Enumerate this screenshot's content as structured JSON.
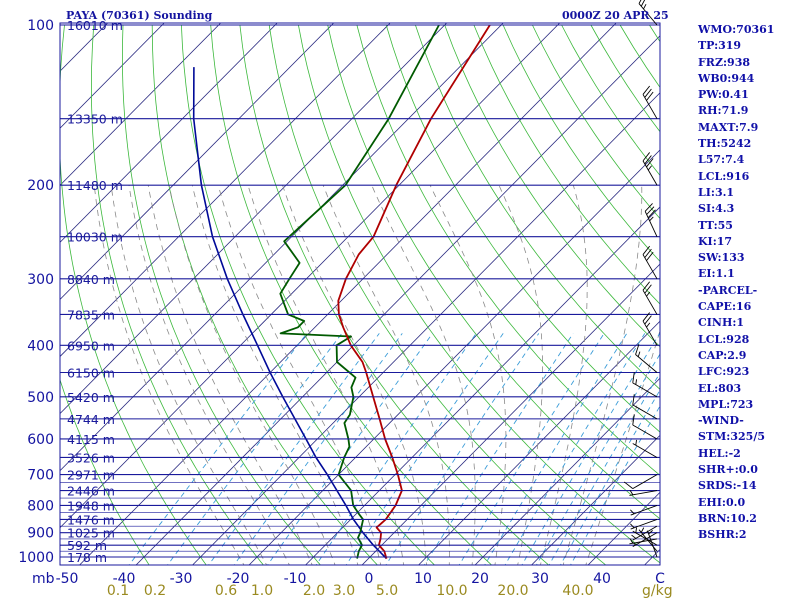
{
  "header": {
    "station": "PAYA (70361) Sounding",
    "valid_time": "0000Z 20 APR 25"
  },
  "indices": [
    "WMO:70361",
    "TP:319",
    "FRZ:938",
    "WB0:944",
    "PW:0.41",
    "RH:71.9",
    "MAXT:7.9",
    "TH:5242",
    "L57:7.4",
    "LCL:916",
    "LI:3.1",
    "SI:4.3",
    "TT:55",
    "KI:17",
    "SW:133",
    "EI:1.1",
    "-PARCEL-",
    "CAPE:16",
    "CINH:1",
    "LCL:928",
    "CAP:2.9",
    "LFC:923",
    "EL:803",
    "MPL:723",
    "-WIND-",
    "STM:325/5",
    "HEL:-2",
    "SHR+:0.0",
    "SRDS:-14",
    "EHI:0.0",
    "BRN:10.2",
    "BSHR:2"
  ],
  "chart_data": {
    "type": "line",
    "diagram": "skew-T log-P",
    "pressure_unit_label": "mb",
    "pressure_levels": [
      "100",
      "200",
      "300",
      "400",
      "500",
      "600",
      "700",
      "800",
      "900",
      "1000"
    ],
    "height_labels": [
      {
        "p": 100,
        "text": "16010 m"
      },
      {
        "p": 150,
        "text": "13350 m"
      },
      {
        "p": 200,
        "text": "11480 m"
      },
      {
        "p": 250,
        "text": "10030 m"
      },
      {
        "p": 300,
        "text": "8840 m"
      },
      {
        "p": 350,
        "text": "7835 m"
      },
      {
        "p": 400,
        "text": "6950 m"
      },
      {
        "p": 450,
        "text": "6150 m"
      },
      {
        "p": 500,
        "text": "5420 m"
      },
      {
        "p": 550,
        "text": "4744 m"
      },
      {
        "p": 600,
        "text": "4115 m"
      },
      {
        "p": 650,
        "text": "3526 m"
      },
      {
        "p": 700,
        "text": "2971 m"
      },
      {
        "p": 750,
        "text": "2446 m"
      },
      {
        "p": 800,
        "text": "1948 m"
      },
      {
        "p": 850,
        "text": "1476 m"
      },
      {
        "p": 900,
        "text": "1025 m"
      },
      {
        "p": 950,
        "text": "592 m"
      },
      {
        "p": 1000,
        "text": "178 m"
      }
    ],
    "temperature_ticks": [
      "-50",
      "-40",
      "-30",
      "-20",
      "-10",
      "0",
      "10",
      "20",
      "30",
      "40",
      "C"
    ],
    "mixing_ratio_ticks": [
      {
        "w": 0.1,
        "text": "0.1"
      },
      {
        "w": 0.2,
        "text": "0.2"
      },
      {
        "w": 0.6,
        "text": "0.6"
      },
      {
        "w": 1.0,
        "text": "1.0"
      },
      {
        "w": 2.0,
        "text": "2.0"
      },
      {
        "w": 3.0,
        "text": "3.0"
      },
      {
        "w": 5.0,
        "text": "5.0"
      },
      {
        "w": 10.0,
        "text": "10.0"
      },
      {
        "w": 20.0,
        "text": "20.0"
      },
      {
        "w": 40.0,
        "text": "40.0"
      }
    ],
    "mixing_ratio_unit": "g/kg",
    "temperature_c": [
      [
        1007,
        3.2
      ],
      [
        975,
        1.5
      ],
      [
        950,
        -0.5
      ],
      [
        925,
        -1.3
      ],
      [
        900,
        -2.3
      ],
      [
        880,
        -4.0
      ],
      [
        850,
        -3.8
      ],
      [
        800,
        -4.5
      ],
      [
        750,
        -6.0
      ],
      [
        700,
        -9.5
      ],
      [
        650,
        -13.5
      ],
      [
        600,
        -18.0
      ],
      [
        550,
        -22.5
      ],
      [
        500,
        -27.5
      ],
      [
        450,
        -33.0
      ],
      [
        430,
        -35.5
      ],
      [
        400,
        -40.5
      ],
      [
        370,
        -45.0
      ],
      [
        350,
        -48.0
      ],
      [
        330,
        -50.5
      ],
      [
        300,
        -53.0
      ],
      [
        270,
        -55.0
      ],
      [
        250,
        -55.5
      ],
      [
        200,
        -60.5
      ],
      [
        150,
        -66.0
      ],
      [
        100,
        -72.0
      ]
    ],
    "dewpoint_c": [
      [
        1007,
        -2.0
      ],
      [
        975,
        -3.0
      ],
      [
        950,
        -3.5
      ],
      [
        920,
        -5.5
      ],
      [
        900,
        -6.0
      ],
      [
        850,
        -7.8
      ],
      [
        830,
        -9.5
      ],
      [
        800,
        -12.0
      ],
      [
        750,
        -15.0
      ],
      [
        700,
        -20.0
      ],
      [
        650,
        -22.0
      ],
      [
        620,
        -23.0
      ],
      [
        600,
        -24.5
      ],
      [
        560,
        -28.0
      ],
      [
        540,
        -28.5
      ],
      [
        500,
        -31.0
      ],
      [
        480,
        -33.0
      ],
      [
        460,
        -34.0
      ],
      [
        430,
        -40.0
      ],
      [
        400,
        -43.0
      ],
      [
        385,
        -42.0
      ],
      [
        380,
        -55.0
      ],
      [
        370,
        -53.0
      ],
      [
        360,
        -53.0
      ],
      [
        350,
        -57.0
      ],
      [
        320,
        -62.0
      ],
      [
        300,
        -63.0
      ],
      [
        280,
        -64.0
      ],
      [
        255,
        -70.5
      ],
      [
        200,
        -69.5
      ],
      [
        150,
        -73.5
      ],
      [
        100,
        -81.0
      ]
    ],
    "parcel_path_c": [
      [
        1007,
        3.2
      ],
      [
        950,
        -1.5
      ],
      [
        900,
        -5.5
      ],
      [
        850,
        -9.5
      ],
      [
        800,
        -13.3
      ],
      [
        750,
        -17.5
      ],
      [
        700,
        -22.0
      ],
      [
        650,
        -27.0
      ],
      [
        600,
        -32.0
      ],
      [
        550,
        -37.5
      ],
      [
        500,
        -43.5
      ],
      [
        450,
        -50.0
      ],
      [
        400,
        -57.0
      ],
      [
        350,
        -65.0
      ],
      [
        300,
        -74.0
      ],
      [
        250,
        -84.0
      ],
      [
        200,
        -95.0
      ],
      [
        150,
        -108.0
      ],
      [
        120,
        -117.0
      ]
    ],
    "wind_barbs": [
      {
        "p": 1000,
        "dir": 340,
        "spd": 5
      },
      {
        "p": 975,
        "dir": 320,
        "spd": 5
      },
      {
        "p": 950,
        "dir": 300,
        "spd": 5
      },
      {
        "p": 925,
        "dir": 260,
        "spd": 5
      },
      {
        "p": 900,
        "dir": 240,
        "spd": 5
      },
      {
        "p": 875,
        "dir": 240,
        "spd": 5
      },
      {
        "p": 850,
        "dir": 250,
        "spd": 5
      },
      {
        "p": 800,
        "dir": 250,
        "spd": 5
      },
      {
        "p": 750,
        "dir": 260,
        "spd": 5
      },
      {
        "p": 700,
        "dir": 240,
        "spd": 10
      },
      {
        "p": 650,
        "dir": 300,
        "spd": 5
      },
      {
        "p": 600,
        "dir": 300,
        "spd": 10
      },
      {
        "p": 550,
        "dir": 300,
        "spd": 10
      },
      {
        "p": 500,
        "dir": 300,
        "spd": 15
      },
      {
        "p": 450,
        "dir": 310,
        "spd": 15
      },
      {
        "p": 400,
        "dir": 330,
        "spd": 25
      },
      {
        "p": 350,
        "dir": 330,
        "spd": 25
      },
      {
        "p": 300,
        "dir": 330,
        "spd": 30
      },
      {
        "p": 250,
        "dir": 335,
        "spd": 35
      },
      {
        "p": 200,
        "dir": 330,
        "spd": 35
      },
      {
        "p": 150,
        "dir": 330,
        "spd": 30
      },
      {
        "p": 100,
        "dir": 320,
        "spd": 25
      }
    ],
    "colors": {
      "isobar": "#1a1a9c",
      "isotherm": "#2a2a80",
      "dry_adiabat": "#3cb83c",
      "moist_adiabat": "#8a8a8a",
      "mixing_ratio": "#3a9cd8",
      "temperature": "#b00000",
      "dewpoint": "#005a00",
      "parcel": "#000a98",
      "wind_barb": "#000000",
      "label_blue": "#1414a0",
      "label_olive": "#9a8a20"
    }
  }
}
